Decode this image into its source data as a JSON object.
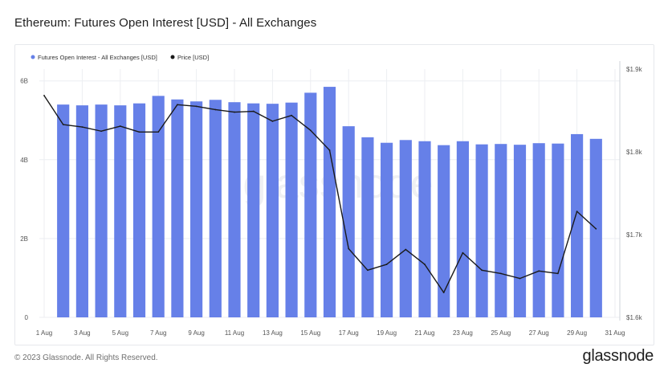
{
  "header": {
    "title": "Ethereum: Futures Open Interest [USD] - All Exchanges"
  },
  "footer": {
    "copyright": "© 2023 Glassnode. All Rights Reserved.",
    "logo": "glassnode"
  },
  "watermark": "glassnode",
  "colors": {
    "bars": "#6680e8",
    "price_line": "#1a1a1a",
    "grid": "#eceef2",
    "axis_text": "#555555"
  },
  "chart_data": {
    "type": "bar",
    "title": "Ethereum: Futures Open Interest [USD] - All Exchanges",
    "legend_position": "top-left",
    "grid": true,
    "x": [
      "1 Aug",
      "2 Aug",
      "3 Aug",
      "4 Aug",
      "5 Aug",
      "6 Aug",
      "7 Aug",
      "8 Aug",
      "9 Aug",
      "10 Aug",
      "11 Aug",
      "12 Aug",
      "13 Aug",
      "14 Aug",
      "15 Aug",
      "16 Aug",
      "17 Aug",
      "18 Aug",
      "19 Aug",
      "20 Aug",
      "21 Aug",
      "22 Aug",
      "23 Aug",
      "24 Aug",
      "25 Aug",
      "26 Aug",
      "27 Aug",
      "28 Aug",
      "29 Aug",
      "30 Aug",
      "31 Aug"
    ],
    "x_tick_labels": [
      "1 Aug",
      "3 Aug",
      "5 Aug",
      "7 Aug",
      "9 Aug",
      "11 Aug",
      "13 Aug",
      "15 Aug",
      "17 Aug",
      "19 Aug",
      "21 Aug",
      "23 Aug",
      "25 Aug",
      "27 Aug",
      "29 Aug",
      "31 Aug"
    ],
    "series": [
      {
        "name": "Futures Open Interest - All Exchanges [USD]",
        "axis": "left",
        "kind": "bar",
        "x": [
          "2 Aug",
          "3 Aug",
          "4 Aug",
          "5 Aug",
          "6 Aug",
          "7 Aug",
          "8 Aug",
          "9 Aug",
          "10 Aug",
          "11 Aug",
          "12 Aug",
          "13 Aug",
          "14 Aug",
          "15 Aug",
          "16 Aug",
          "17 Aug",
          "18 Aug",
          "19 Aug",
          "20 Aug",
          "21 Aug",
          "22 Aug",
          "23 Aug",
          "24 Aug",
          "25 Aug",
          "26 Aug",
          "27 Aug",
          "28 Aug",
          "29 Aug",
          "30 Aug"
        ],
        "values": [
          5.4,
          5.38,
          5.4,
          5.38,
          5.43,
          5.62,
          5.53,
          5.48,
          5.52,
          5.46,
          5.43,
          5.42,
          5.45,
          5.7,
          5.85,
          4.85,
          4.57,
          4.43,
          4.5,
          4.47,
          4.37,
          4.47,
          4.39,
          4.4,
          4.38,
          4.42,
          4.41,
          4.65,
          4.53
        ]
      },
      {
        "name": "Price [USD]",
        "axis": "right",
        "kind": "line",
        "x": [
          "1 Aug",
          "2 Aug",
          "3 Aug",
          "4 Aug",
          "5 Aug",
          "6 Aug",
          "7 Aug",
          "8 Aug",
          "9 Aug",
          "10 Aug",
          "11 Aug",
          "12 Aug",
          "13 Aug",
          "14 Aug",
          "15 Aug",
          "16 Aug",
          "17 Aug",
          "18 Aug",
          "19 Aug",
          "20 Aug",
          "21 Aug",
          "22 Aug",
          "23 Aug",
          "24 Aug",
          "25 Aug",
          "26 Aug",
          "27 Aug",
          "28 Aug",
          "29 Aug",
          "30 Aug"
        ],
        "values": [
          1868,
          1833,
          1830,
          1825,
          1831,
          1824,
          1824,
          1857,
          1855,
          1851,
          1848,
          1849,
          1837,
          1844,
          1826,
          1802,
          1683,
          1657,
          1664,
          1682,
          1664,
          1630,
          1678,
          1657,
          1653,
          1647,
          1656,
          1653,
          1728,
          1707
        ]
      }
    ],
    "y_left": {
      "range": [
        0,
        6.3
      ],
      "ticks": [
        0,
        2,
        4,
        6
      ],
      "tick_labels": [
        "0",
        "2B",
        "4B",
        "6B"
      ]
    },
    "y_right": {
      "range": [
        1600,
        1900
      ],
      "ticks": [
        1600,
        1700,
        1800,
        1900
      ],
      "tick_labels": [
        "$1.6k",
        "$1.7k",
        "$1.8k",
        "$1.9k"
      ]
    }
  }
}
